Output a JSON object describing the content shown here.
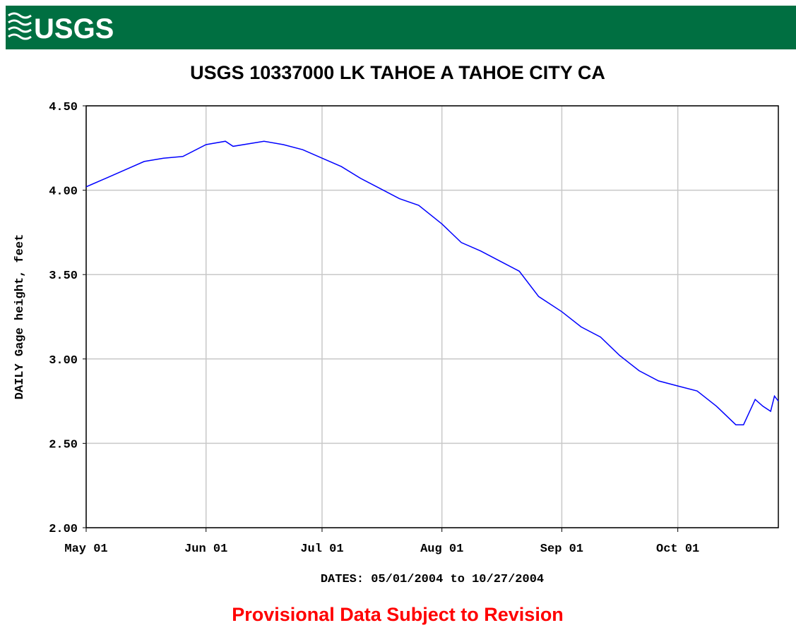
{
  "header": {
    "logo": "USGS"
  },
  "chart_data": {
    "type": "line",
    "title": "USGS 10337000 LK TAHOE A TAHOE CITY CA",
    "x_label": "DATES: 05/01/2004 to 10/27/2004",
    "y_label": "DAILY Gage height, feet",
    "note": "Provisional Data Subject to Revision",
    "x": [
      "2004-05-01",
      "2004-05-06",
      "2004-05-11",
      "2004-05-16",
      "2004-05-21",
      "2004-05-26",
      "2004-06-01",
      "2004-06-06",
      "2004-06-08",
      "2004-06-16",
      "2004-06-21",
      "2004-06-26",
      "2004-07-01",
      "2004-07-06",
      "2004-07-11",
      "2004-07-16",
      "2004-07-21",
      "2004-07-26",
      "2004-08-01",
      "2004-08-06",
      "2004-08-11",
      "2004-08-16",
      "2004-08-21",
      "2004-08-26",
      "2004-09-01",
      "2004-09-06",
      "2004-09-11",
      "2004-09-16",
      "2004-09-21",
      "2004-09-26",
      "2004-10-01",
      "2004-10-06",
      "2004-10-11",
      "2004-10-16",
      "2004-10-18",
      "2004-10-21",
      "2004-10-23",
      "2004-10-25",
      "2004-10-26",
      "2004-10-27"
    ],
    "series": [
      {
        "name": "Gage height",
        "color": "#0000ff",
        "values": [
          4.02,
          4.07,
          4.12,
          4.17,
          4.19,
          4.2,
          4.27,
          4.29,
          4.26,
          4.29,
          4.27,
          4.24,
          4.19,
          4.14,
          4.07,
          4.01,
          3.95,
          3.91,
          3.8,
          3.69,
          3.64,
          3.58,
          3.52,
          3.37,
          3.28,
          3.19,
          3.13,
          3.02,
          2.93,
          2.87,
          2.84,
          2.81,
          2.72,
          2.61,
          2.61,
          2.76,
          2.72,
          2.69,
          2.78,
          2.75
        ]
      }
    ],
    "xlim": [
      "2004-05-01",
      "2004-10-27"
    ],
    "xticks": [
      {
        "value": "2004-05-01",
        "label": "May 01"
      },
      {
        "value": "2004-06-01",
        "label": "Jun 01"
      },
      {
        "value": "2004-07-01",
        "label": "Jul 01"
      },
      {
        "value": "2004-08-01",
        "label": "Aug 01"
      },
      {
        "value": "2004-09-01",
        "label": "Sep 01"
      },
      {
        "value": "2004-10-01",
        "label": "Oct 01"
      }
    ],
    "ylim": [
      2,
      4.5
    ],
    "yticks": [
      {
        "value": 2,
        "label": "2.00"
      },
      {
        "value": 2.5,
        "label": "2.50"
      },
      {
        "value": 3,
        "label": "3.00"
      },
      {
        "value": 3.5,
        "label": "3.50"
      },
      {
        "value": 4,
        "label": "4.00"
      },
      {
        "value": 4.5,
        "label": "4.50"
      }
    ],
    "grid": true
  }
}
